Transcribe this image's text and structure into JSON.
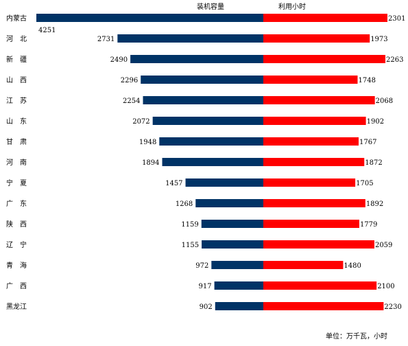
{
  "chart_data": {
    "type": "bar",
    "categories": [
      "内蒙古",
      "河　北",
      "新　疆",
      "山　西",
      "江　苏",
      "山　东",
      "甘　肃",
      "河　南",
      "宁　夏",
      "广　东",
      "陕　西",
      "辽　宁",
      "青　海",
      "广　西",
      "黑龙江"
    ],
    "series": [
      {
        "name": "装机容量",
        "values": [
          4251,
          2731,
          2490,
          2296,
          2254,
          2072,
          1948,
          1894,
          1457,
          1268,
          1159,
          1155,
          972,
          917,
          902
        ],
        "color": "#003366"
      },
      {
        "name": "利用小时",
        "values": [
          2301,
          1973,
          2263,
          1748,
          2068,
          1902,
          1767,
          1872,
          1705,
          1892,
          1779,
          2059,
          1480,
          2100,
          2230
        ],
        "color": "#ff0000"
      }
    ],
    "unit_note": "单位：万千瓦，小时"
  }
}
